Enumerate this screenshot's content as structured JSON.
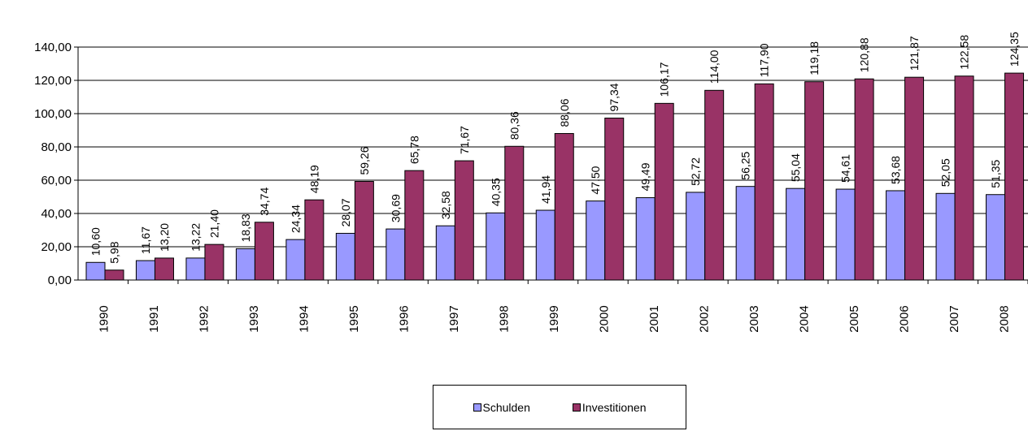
{
  "chart_data": {
    "type": "bar",
    "categories": [
      "1990",
      "1991",
      "1992",
      "1993",
      "1994",
      "1995",
      "1996",
      "1997",
      "1998",
      "1999",
      "2000",
      "2001",
      "2002",
      "2003",
      "2004",
      "2005",
      "2006",
      "2007",
      "2008"
    ],
    "series": [
      {
        "name": "Schulden",
        "color": "#9999ff",
        "values": [
          10.6,
          11.67,
          13.22,
          18.83,
          24.34,
          28.07,
          30.69,
          32.58,
          40.35,
          41.94,
          47.5,
          49.49,
          52.72,
          56.25,
          55.04,
          54.61,
          53.68,
          52.05,
          51.35
        ],
        "labels": [
          "10,60",
          "11,67",
          "13,22",
          "18,83",
          "24,34",
          "28,07",
          "30,69",
          "32,58",
          "40,35",
          "41,94",
          "47,50",
          "49,49",
          "52,72",
          "56,25",
          "55,04",
          "54,61",
          "53,68",
          "52,05",
          "51,35"
        ]
      },
      {
        "name": "Investitionen",
        "color": "#993366",
        "values": [
          5.98,
          13.2,
          21.4,
          34.74,
          48.19,
          59.26,
          65.78,
          71.67,
          80.36,
          88.06,
          97.34,
          106.17,
          114.0,
          117.9,
          119.18,
          120.88,
          121.87,
          122.58,
          124.35
        ],
        "labels": [
          "5,98",
          "13,20",
          "21,40",
          "34,74",
          "48,19",
          "59,26",
          "65,78",
          "71,67",
          "80,36",
          "88,06",
          "97,34",
          "106,17",
          "114,00",
          "117,90",
          "119,18",
          "120,88",
          "121,87",
          "122,58",
          "124,35"
        ]
      }
    ],
    "y_ticks": [
      "0,00",
      "20,00",
      "40,00",
      "60,00",
      "80,00",
      "100,00",
      "120,00",
      "140,00"
    ],
    "ylim": [
      0,
      140
    ],
    "grid": true,
    "legend_position": "bottom"
  }
}
